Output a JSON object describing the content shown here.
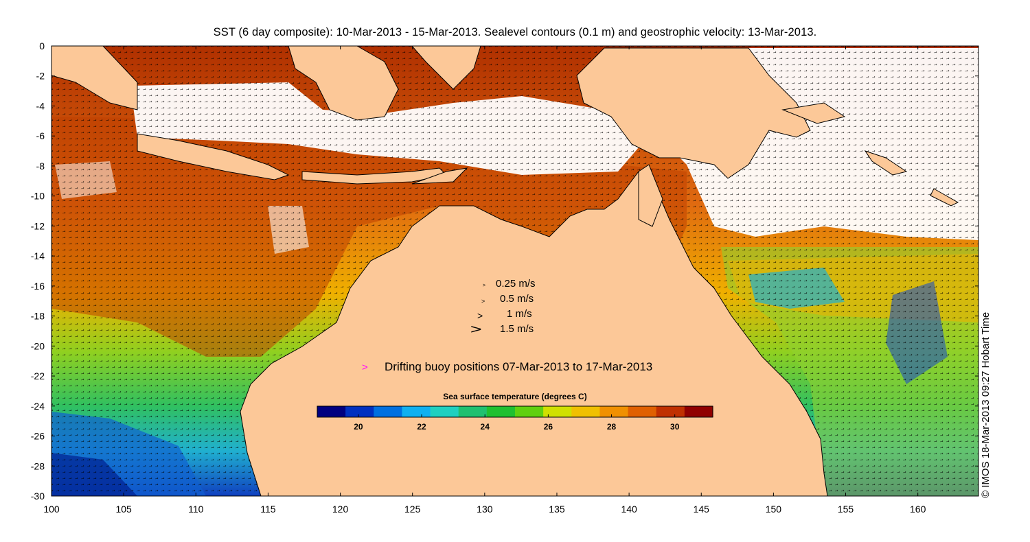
{
  "title": "SST (6 day composite): 10-Mar-2013 - 15-Mar-2013. Sealevel contours (0.1 m) and geostrophic velocity: 13-Mar-2013.",
  "copyright": "© IMOS 18-Mar-2013 09:27 Hobart Time",
  "axes": {
    "x_ticks": [
      "100",
      "105",
      "110",
      "115",
      "120",
      "125",
      "130",
      "135",
      "140",
      "145",
      "150",
      "155",
      "160"
    ],
    "y_ticks": [
      "0",
      "-2",
      "-4",
      "-6",
      "-8",
      "-10",
      "-12",
      "-14",
      "-16",
      "-18",
      "-20",
      "-22",
      "-24",
      "-26",
      "-28",
      "-30"
    ],
    "xlim": [
      100,
      164.2
    ],
    "ylim": [
      -30,
      0
    ]
  },
  "velocity_legend": [
    "0.25 m/s",
    "0.5 m/s",
    "1 m/s",
    "1.5 m/s"
  ],
  "buoy_legend": {
    "symbol": ">",
    "text": "Drifting buoy positions 07-Mar-2013 to 17-Mar-2013",
    "color": "#ff00ff"
  },
  "colorbar": {
    "title": "Sea surface temperature (degrees C)",
    "ticks": [
      "20",
      "22",
      "24",
      "26",
      "28",
      "30"
    ],
    "range": [
      18.7,
      31.2
    ],
    "colors": [
      "#000080",
      "#0030c0",
      "#0070e0",
      "#10b0f0",
      "#20d0c0",
      "#20c070",
      "#20c030",
      "#60d010",
      "#d0e000",
      "#f0c000",
      "#f09000",
      "#e06000",
      "#c03000",
      "#900000"
    ]
  },
  "colors": {
    "land": "#fcc898",
    "coastline": "#000000",
    "cloud": "#ffffff"
  }
}
